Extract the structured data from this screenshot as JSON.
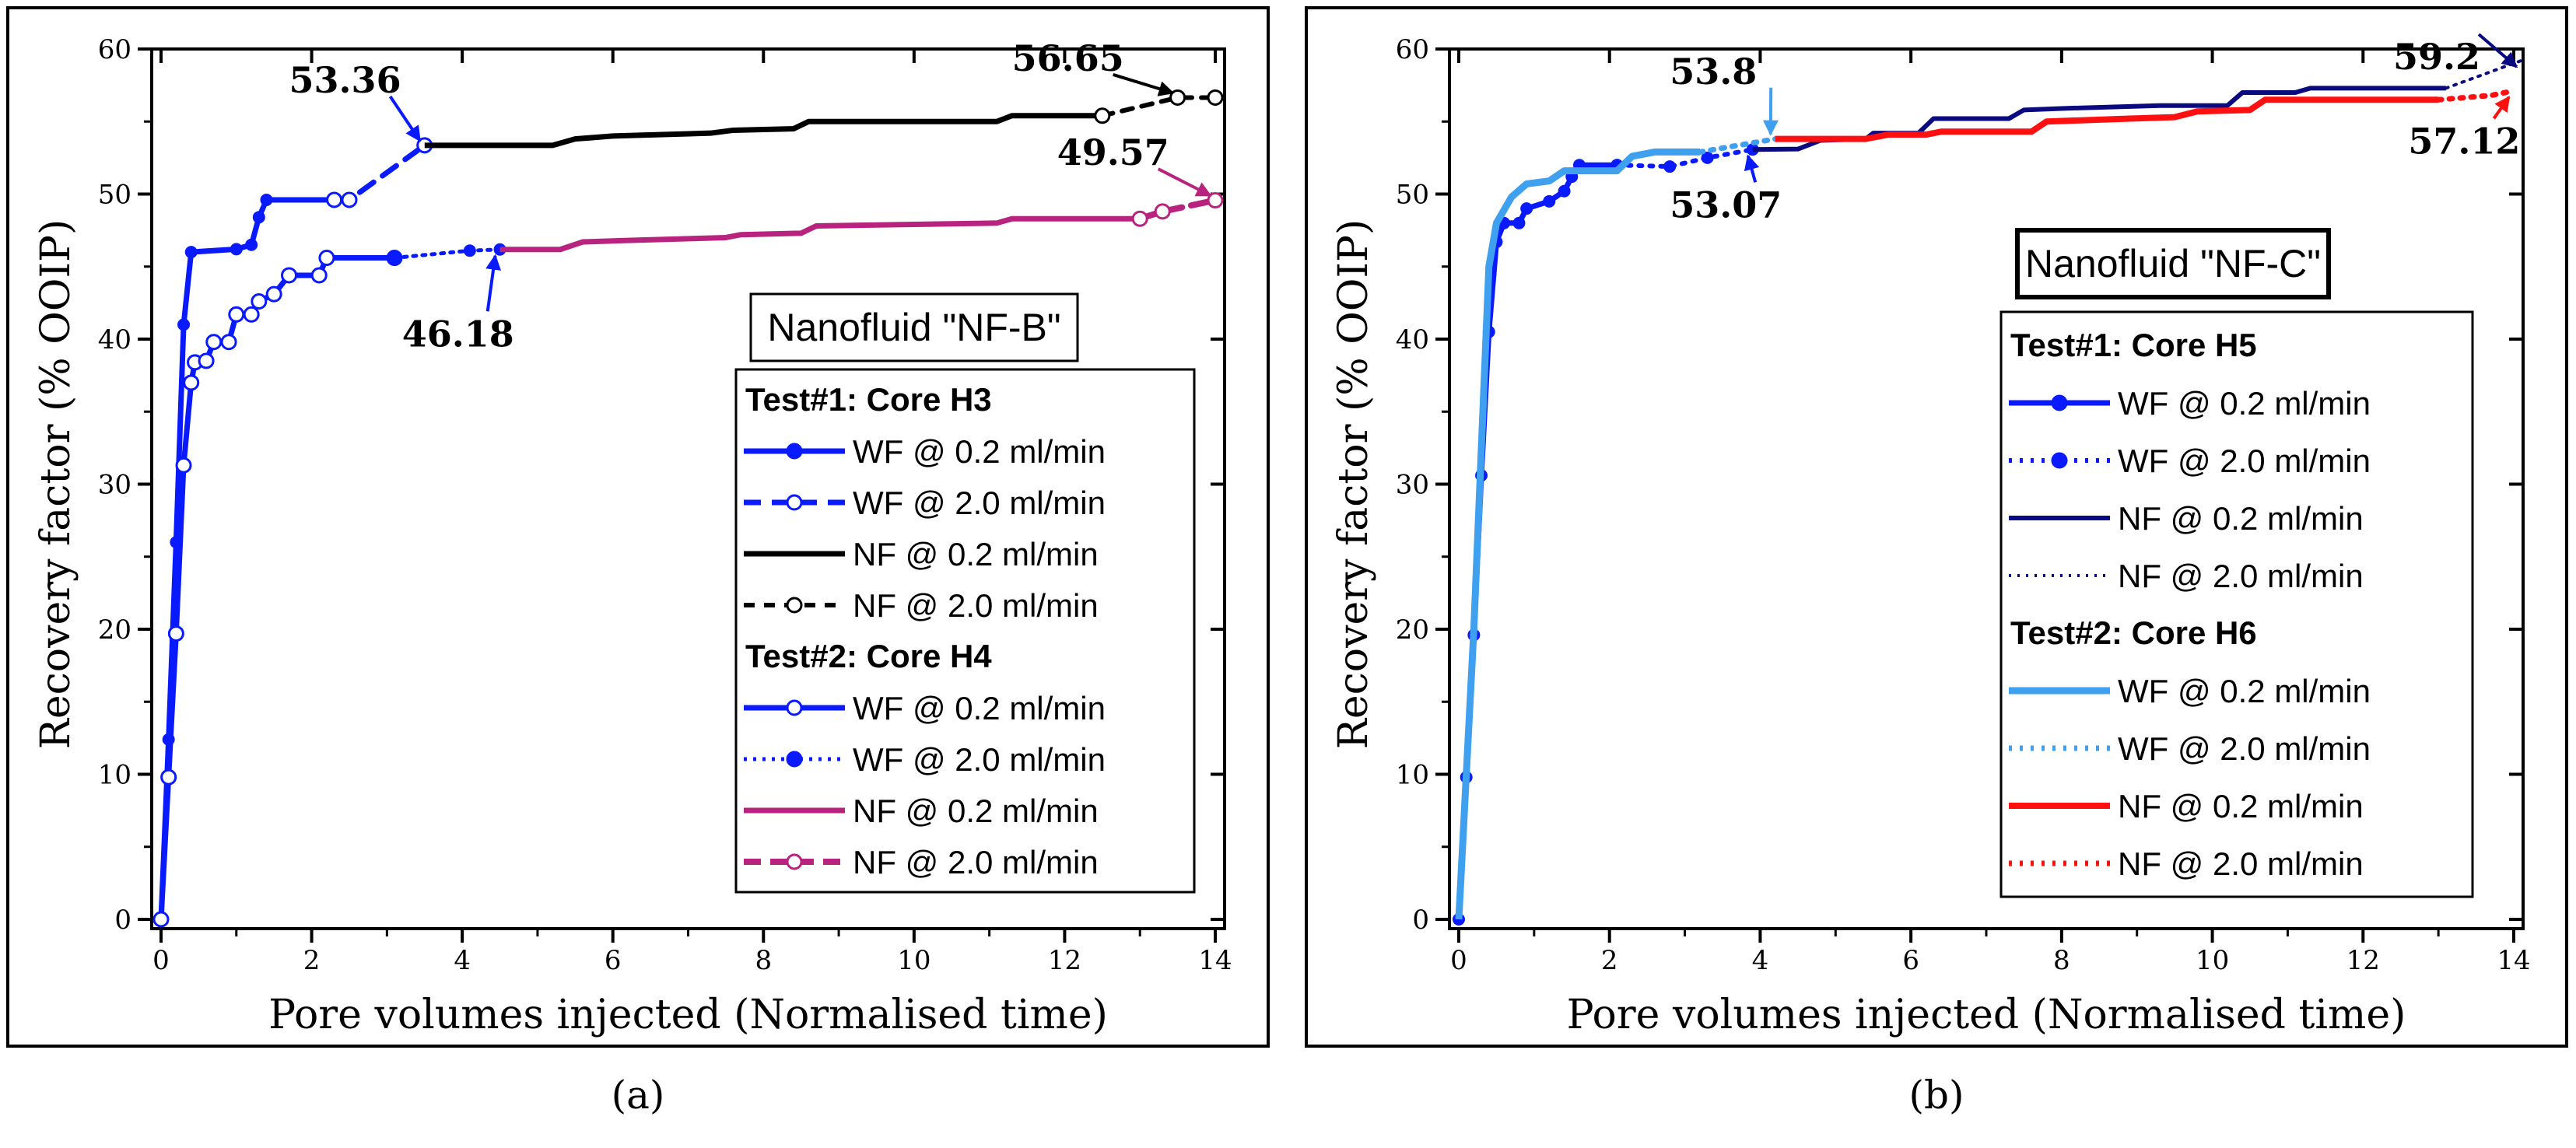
{
  "chart_data": [
    {
      "type": "line",
      "panel_label": "(a)",
      "box_title": "Nanofluid \"NF-B\"",
      "xlabel": "Pore volumes injected (Normalised time)",
      "ylabel": "Recovery factor (% OOIP)",
      "xlim": [
        0,
        14
      ],
      "ylim": [
        0,
        60
      ],
      "xticks": [
        0,
        2,
        4,
        6,
        8,
        10,
        12,
        14
      ],
      "yticks": [
        0,
        10,
        20,
        30,
        40,
        50,
        60
      ],
      "legend_groups": [
        "Test#1: Core H3",
        "Test#2: Core H4"
      ],
      "series": [
        {
          "name": "WF @ 0.2 ml/min",
          "group": 0,
          "color": "#0a1aff",
          "dash": "",
          "width": 7,
          "marker": "dot",
          "x": [
            0,
            0.1,
            0.2,
            0.3,
            0.4,
            1,
            1.2,
            1.3,
            1.4,
            2.3
          ],
          "y": [
            0,
            12.4,
            26,
            41,
            46,
            46.2,
            46.5,
            48.4,
            49.6,
            49.6
          ]
        },
        {
          "name": "WF @ 2.0 ml/min",
          "group": 0,
          "color": "#0a1aff",
          "dash": "22 14",
          "width": 7,
          "marker": "ring",
          "x": [
            2.3,
            2.5,
            3.5
          ],
          "y": [
            49.6,
            49.6,
            53.36
          ]
        },
        {
          "name": "NF @ 0.2 ml/min",
          "group": 0,
          "color": "#000000",
          "dash": "",
          "width": 7,
          "marker": "",
          "x": [
            3.5,
            5.2,
            5.5,
            6,
            7.3,
            7.6,
            8.4,
            8.6,
            11.1,
            11.3,
            12.5
          ],
          "y": [
            53.36,
            53.36,
            53.8,
            54,
            54.2,
            54.4,
            54.5,
            55,
            55,
            55.4,
            55.4
          ]
        },
        {
          "name": "NF @ 2.0 ml/min",
          "group": 0,
          "color": "#000000",
          "dash": "14 12",
          "width": 6,
          "marker": "ring",
          "x": [
            12.5,
            13.5,
            14
          ],
          "y": [
            55.4,
            56.65,
            56.65
          ]
        },
        {
          "name": "WF @ 0.2 ml/min",
          "group": 1,
          "color": "#0a1aff",
          "dash": "",
          "width": 7,
          "marker": "half",
          "x": [
            0,
            0.1,
            0.2,
            0.3,
            0.4,
            0.45,
            0.6,
            0.7,
            0.9,
            1,
            1.2,
            1.3,
            1.5,
            1.7,
            2.1,
            2.2,
            3.1
          ],
          "y": [
            0,
            9.8,
            19.7,
            31.3,
            37,
            38.4,
            38.5,
            39.8,
            39.8,
            41.7,
            41.7,
            42.6,
            43.1,
            44.4,
            44.4,
            45.6,
            45.6
          ]
        },
        {
          "name": "WF @ 2.0 ml/min",
          "group": 1,
          "color": "#0a1aff",
          "dash": "4 8",
          "width": 5,
          "marker": "dot",
          "x": [
            3.1,
            4.1,
            4.5
          ],
          "y": [
            45.6,
            46.1,
            46.18
          ]
        },
        {
          "name": "NF @ 0.2 ml/min",
          "group": 1,
          "color": "#b8237f",
          "dash": "",
          "width": 7,
          "marker": "",
          "x": [
            4.5,
            5.3,
            5.6,
            6.2,
            7.5,
            7.7,
            8.5,
            8.7,
            11.1,
            11.3,
            13
          ],
          "y": [
            46.18,
            46.18,
            46.7,
            46.8,
            47,
            47.2,
            47.3,
            47.8,
            48,
            48.3,
            48.3
          ]
        },
        {
          "name": "NF @ 2.0 ml/min",
          "group": 1,
          "color": "#b8237f",
          "dash": "22 12",
          "width": 8,
          "marker": "xring",
          "x": [
            13,
            13.3,
            14
          ],
          "y": [
            48.3,
            48.8,
            49.57
          ]
        }
      ],
      "annotations": [
        {
          "text": "53.36",
          "x": 3.5,
          "y": 53.36,
          "tx": 1.7,
          "ty": 57
        },
        {
          "text": "46.18",
          "x": 4.5,
          "y": 46.18,
          "tx": 3.2,
          "ty": 39.5
        },
        {
          "text": "56.65",
          "x": 13.5,
          "y": 56.65,
          "tx": 11.3,
          "ty": 58.5
        },
        {
          "text": "49.57",
          "x": 14,
          "y": 49.57,
          "tx": 11.9,
          "ty": 52
        }
      ]
    },
    {
      "type": "line",
      "panel_label": "(b)",
      "box_title": "Nanofluid \"NF-C\"",
      "xlabel": "Pore volumes injected (Normalised time)",
      "ylabel": "Recovery factor (% OOIP)",
      "xlim": [
        0,
        14
      ],
      "ylim": [
        0,
        60
      ],
      "xticks": [
        0,
        2,
        4,
        6,
        8,
        10,
        12,
        14
      ],
      "yticks": [
        0,
        10,
        20,
        30,
        40,
        50,
        60
      ],
      "legend_groups": [
        "Test#1: Core H5",
        "Test#2: Core H6"
      ],
      "series": [
        {
          "name": "WF @ 0.2 ml/min",
          "group": 0,
          "color": "#0a1aff",
          "dash": "",
          "width": 7,
          "marker": "dot",
          "x": [
            0,
            0.1,
            0.2,
            0.3,
            0.4,
            0.5,
            0.6,
            0.8,
            0.9,
            1.2,
            1.4,
            1.5,
            1.6,
            2.1
          ],
          "y": [
            0,
            9.8,
            19.6,
            30.6,
            40.5,
            46.7,
            48,
            48,
            49,
            49.5,
            50.2,
            51.2,
            52,
            52
          ]
        },
        {
          "name": "WF @ 2.0 ml/min",
          "group": 0,
          "color": "#0a1aff",
          "dash": "4 10",
          "width": 6,
          "marker": "dot",
          "x": [
            2.1,
            2.8,
            3.3,
            3.9
          ],
          "y": [
            52,
            51.9,
            52.5,
            53.07
          ]
        },
        {
          "name": "NF @ 0.2 ml/min",
          "group": 0,
          "color": "#0a0a80",
          "dash": "",
          "width": 6,
          "marker": "",
          "x": [
            3.9,
            4.5,
            4.8,
            5.4,
            5.5,
            6.1,
            6.3,
            7.3,
            7.5,
            8,
            9.3,
            10.2,
            10.4,
            11.1,
            11.3,
            13.1
          ],
          "y": [
            53.07,
            53.1,
            53.7,
            53.8,
            54.2,
            54.2,
            55.2,
            55.2,
            55.8,
            55.9,
            56.1,
            56.1,
            57,
            57,
            57.3,
            57.3
          ]
        },
        {
          "name": "NF @ 2.0 ml/min",
          "group": 0,
          "color": "#0a0a80",
          "dash": "3 8",
          "width": 4,
          "marker": "",
          "x": [
            13.1,
            14.1
          ],
          "y": [
            57.3,
            59.2
          ]
        },
        {
          "name": "WF @ 0.2 ml/min",
          "group": 1,
          "color": "#3fa0f0",
          "dash": "",
          "width": 9,
          "marker": "",
          "x": [
            0,
            0.2,
            0.4,
            0.5,
            0.7,
            0.9,
            1.2,
            1.4,
            2.1,
            2.3,
            2.6,
            3.2
          ],
          "y": [
            0,
            20,
            45,
            48,
            49.8,
            50.7,
            50.9,
            51.6,
            51.6,
            52.6,
            52.9,
            52.9
          ]
        },
        {
          "name": "WF @ 2.0 ml/min",
          "group": 1,
          "color": "#3fa0f0",
          "dash": "4 10",
          "width": 7,
          "marker": "",
          "x": [
            3.2,
            4.2
          ],
          "y": [
            52.9,
            53.8
          ]
        },
        {
          "name": "NF @ 0.2 ml/min",
          "group": 1,
          "color": "#ff1010",
          "dash": "",
          "width": 8,
          "marker": "",
          "x": [
            4.2,
            5.4,
            5.7,
            6.2,
            6.4,
            7.6,
            7.8,
            8.9,
            9.5,
            9.8,
            10.5,
            10.7,
            13
          ],
          "y": [
            53.8,
            53.8,
            54.1,
            54.1,
            54.3,
            54.3,
            55,
            55.2,
            55.3,
            55.7,
            55.8,
            56.5,
            56.5
          ]
        },
        {
          "name": "NF @ 2.0 ml/min",
          "group": 1,
          "color": "#ff1010",
          "dash": "4 10",
          "width": 7,
          "marker": "",
          "x": [
            13,
            13.7,
            14
          ],
          "y": [
            56.5,
            56.8,
            57.12
          ]
        }
      ],
      "annotations": [
        {
          "text": "53.8",
          "x": 4.2,
          "y": 53.8,
          "tx": 2.8,
          "ty": 57.6
        },
        {
          "text": "53.07",
          "x": 3.9,
          "y": 53.07,
          "tx": 2.8,
          "ty": 48.4
        },
        {
          "text": "59.2",
          "x": 14.1,
          "y": 59.2,
          "tx": 12.4,
          "ty": 58.6
        },
        {
          "text": "57.12",
          "x": 14,
          "y": 57.12,
          "tx": 12.6,
          "ty": 52.8
        }
      ]
    }
  ]
}
